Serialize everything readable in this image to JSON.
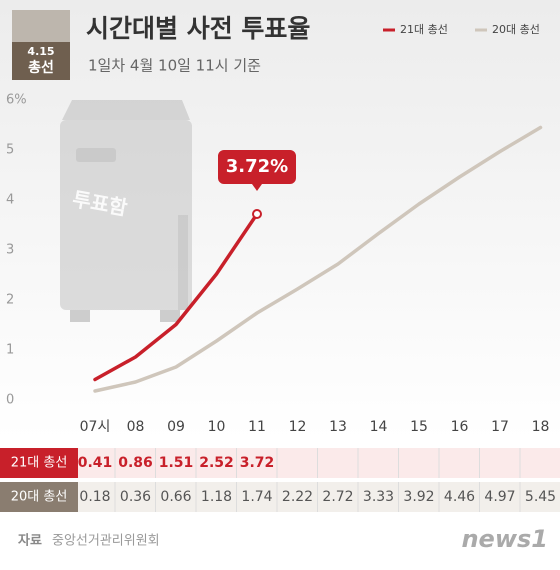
{
  "badge": {
    "date": "4.15",
    "label": "총선"
  },
  "illustration_label": "투표함",
  "chart_data": {
    "type": "line",
    "title": "시간대별 사전 투표율",
    "subtitle": "1일차 4월 10일  11시 기준",
    "categories": [
      "07시",
      "08",
      "09",
      "10",
      "11",
      "12",
      "13",
      "14",
      "15",
      "16",
      "17",
      "18"
    ],
    "series": [
      {
        "name": "21대 총선",
        "color": "#c8202a",
        "values": [
          0.41,
          0.86,
          1.51,
          2.52,
          3.72,
          null,
          null,
          null,
          null,
          null,
          null,
          null
        ],
        "value_labels": [
          null,
          null,
          null,
          null,
          "3.72%",
          null,
          null,
          null,
          null,
          null,
          null,
          null
        ]
      },
      {
        "name": "20대 총선",
        "color": "#cfc6bb",
        "values": [
          0.18,
          0.36,
          0.66,
          1.18,
          1.74,
          2.22,
          2.72,
          3.33,
          3.92,
          4.46,
          4.97,
          5.45
        ]
      }
    ],
    "ylim": [
      0,
      6
    ],
    "yticks": [
      0,
      1,
      2,
      3,
      4,
      5,
      {
        "value": 6,
        "label": "6%"
      }
    ],
    "legend": "top-right"
  },
  "source_label": "자료",
  "source": "중앙선거관리위원회",
  "logo": "news1"
}
